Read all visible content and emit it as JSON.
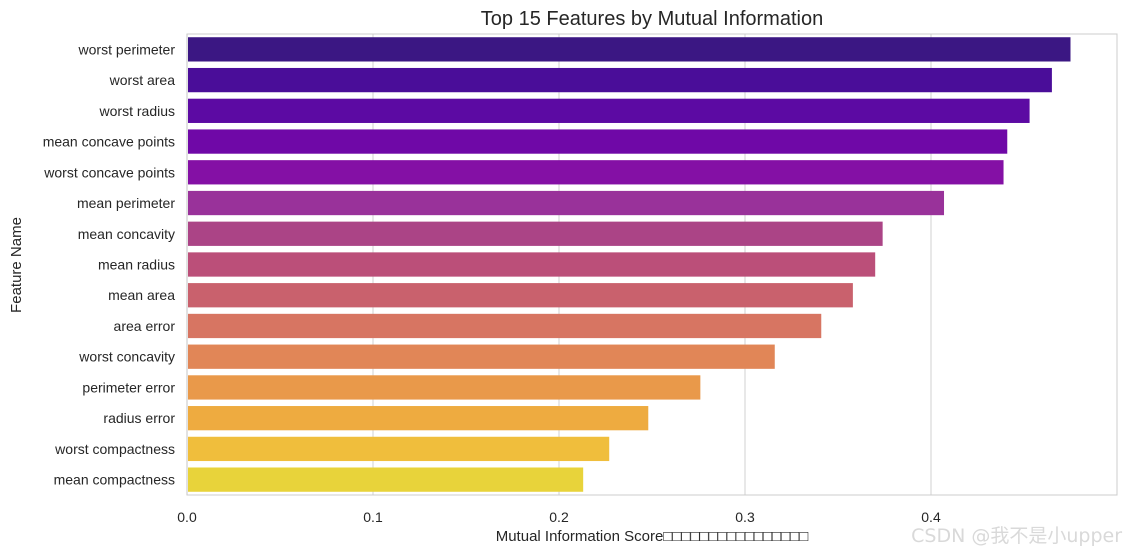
{
  "chart_data": {
    "type": "bar",
    "orientation": "horizontal",
    "title": "Top 15 Features by Mutual Information",
    "xlabel": "Mutual Information Score□□□□□□□□□□□□□□□□",
    "ylabel": "Feature Name",
    "xlim": [
      0,
      0.5
    ],
    "xticks": [
      "0.0",
      "0.1",
      "0.2",
      "0.3",
      "0.4"
    ],
    "xtick_values": [
      0.0,
      0.1,
      0.2,
      0.3,
      0.4
    ],
    "grid": true,
    "categories": [
      "worst perimeter",
      "worst area",
      "worst radius",
      "mean concave points",
      "worst concave points",
      "mean perimeter",
      "mean concavity",
      "mean radius",
      "mean area",
      "area error",
      "worst concavity",
      "perimeter error",
      "radius error",
      "worst compactness",
      "mean compactness"
    ],
    "values": [
      0.475,
      0.465,
      0.453,
      0.441,
      0.439,
      0.407,
      0.374,
      0.37,
      0.358,
      0.341,
      0.316,
      0.276,
      0.248,
      0.227,
      0.213
    ],
    "colors": [
      "#3b1783",
      "#4a0d99",
      "#5c0aa3",
      "#6f08a7",
      "#8410a5",
      "#99329a",
      "#ab4486",
      "#bb4f79",
      "#c9616d",
      "#d77562",
      "#e18657",
      "#e9994a",
      "#eeab40",
      "#f0be3c",
      "#e8d33a"
    ]
  },
  "watermark": "CSDN @我不是小upper"
}
